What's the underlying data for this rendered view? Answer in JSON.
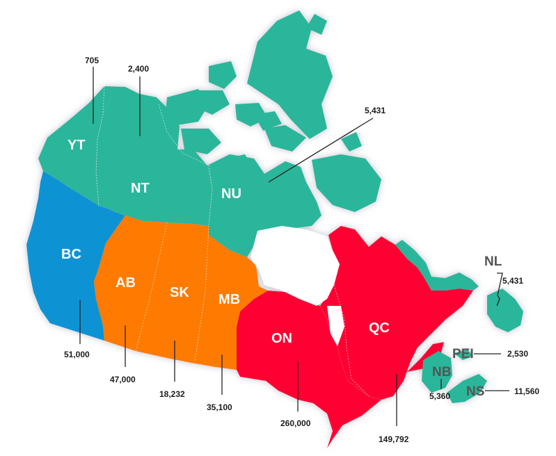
{
  "colors": {
    "teal": "#2bb69a",
    "blue": "#0c93d4",
    "orange": "#ff7a00",
    "red": "#ff0033",
    "label_white": "#ffffff",
    "label_dark": "#555555",
    "value_text": "#1c1c1c"
  },
  "provinces": [
    {
      "abbr": "YT",
      "value": "705",
      "color_key": "teal"
    },
    {
      "abbr": "NT",
      "value": "2,400",
      "color_key": "teal"
    },
    {
      "abbr": "NU",
      "value": "5,431",
      "color_key": "teal"
    },
    {
      "abbr": "BC",
      "value": "51,000",
      "color_key": "blue"
    },
    {
      "abbr": "AB",
      "value": "47,000",
      "color_key": "orange"
    },
    {
      "abbr": "SK",
      "value": "18,232",
      "color_key": "orange"
    },
    {
      "abbr": "MB",
      "value": "35,100",
      "color_key": "orange"
    },
    {
      "abbr": "ON",
      "value": "260,000",
      "color_key": "red"
    },
    {
      "abbr": "QC",
      "value": "149,792",
      "color_key": "red"
    },
    {
      "abbr": "NL",
      "value": "5,431",
      "color_key": "teal"
    },
    {
      "abbr": "PEI",
      "value": "2,530",
      "color_key": "teal"
    },
    {
      "abbr": "NB",
      "value": "5,360",
      "color_key": "teal"
    },
    {
      "abbr": "NS",
      "value": "11,560",
      "color_key": "teal"
    }
  ]
}
